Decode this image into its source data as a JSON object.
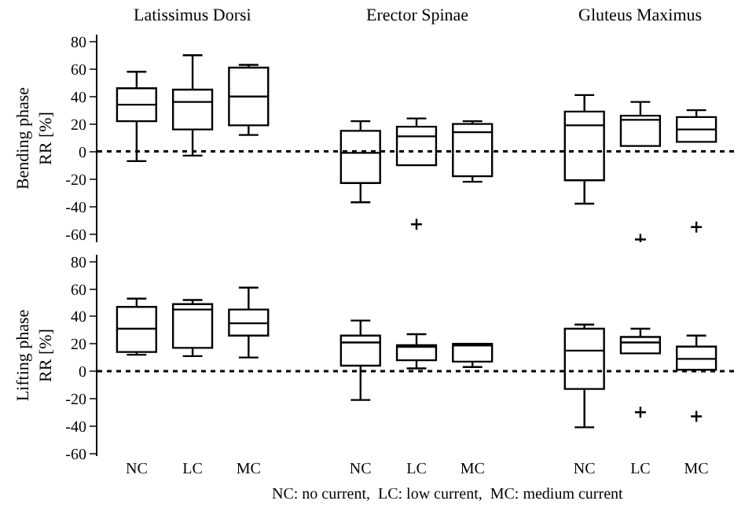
{
  "chart_data": [
    {
      "type": "box",
      "ylabel": "Bending phase\nRR [%]",
      "annotations": [
        "Latissimus Dorsi",
        "Erector Spinae",
        "Gluteus Maximus"
      ],
      "categories": [
        null,
        null,
        null,
        null,
        null,
        null,
        null,
        null,
        null,
        null,
        null
      ],
      "boxes": [
        {
          "low": -7,
          "q1": 22,
          "median": 34,
          "q3": 46,
          "high": 58
        },
        {
          "low": -3,
          "q1": 16,
          "median": 36,
          "q3": 45,
          "high": 70
        },
        {
          "low": 12,
          "q1": 19,
          "median": 40,
          "q3": 61,
          "high": 63
        },
        null,
        {
          "low": -37,
          "q1": -23,
          "median": -1,
          "q3": 15,
          "high": 22
        },
        {
          "low": -10,
          "q1": -10,
          "median": 11,
          "q3": 18,
          "high": 24,
          "outliers": [
            -53
          ]
        },
        {
          "low": -22,
          "q1": -18,
          "median": 14,
          "q3": 20,
          "high": 22
        },
        null,
        {
          "low": -38,
          "q1": -21,
          "median": 19,
          "q3": 29,
          "high": 41
        },
        {
          "low": 4,
          "q1": 4,
          "median": 23,
          "q3": 26,
          "high": 36,
          "outliers": [
            -64
          ]
        },
        {
          "low": 7,
          "q1": 7,
          "median": 16,
          "q3": 25,
          "high": 30,
          "outliers": [
            -55
          ]
        }
      ],
      "ylim": [
        -66,
        85
      ],
      "yticks": [
        -60,
        -40,
        -20,
        0,
        20,
        40,
        60,
        80
      ],
      "tick_labels": "y",
      "grid": false,
      "ref_lines": [
        {
          "axis": "y",
          "value": 0,
          "color": "#000000",
          "line_style": "dotted"
        }
      ]
    },
    {
      "type": "box",
      "ylabel": "Lifting phase\nRR [%]",
      "annotations": [
        "NC: no current,  LC: low current,  MC: medium current"
      ],
      "categories": [
        "NC",
        "LC",
        "MC",
        null,
        "NC",
        "LC",
        "MC",
        null,
        "NC",
        "LC",
        "MC"
      ],
      "boxes": [
        {
          "low": 12,
          "q1": 14,
          "median": 31,
          "q3": 47,
          "high": 53
        },
        {
          "low": 11,
          "q1": 17,
          "median": 45,
          "q3": 49,
          "high": 52
        },
        {
          "low": 10,
          "q1": 26,
          "median": 35,
          "q3": 45,
          "high": 61
        },
        null,
        {
          "low": -21,
          "q1": 4,
          "median": 21,
          "q3": 26,
          "high": 37
        },
        {
          "low": 2,
          "q1": 8,
          "median": 18,
          "q3": 19,
          "high": 27
        },
        {
          "low": 3,
          "q1": 7,
          "median": 19,
          "q3": 20,
          "high": 20
        },
        null,
        {
          "low": -41,
          "q1": -13,
          "median": 15,
          "q3": 31,
          "high": 34
        },
        {
          "low": 13,
          "q1": 13,
          "median": 21,
          "q3": 25,
          "high": 31,
          "outliers": [
            -30
          ]
        },
        {
          "low": 1,
          "q1": 1,
          "median": 9,
          "q3": 18,
          "high": 26,
          "outliers": [
            -33
          ]
        }
      ],
      "ylim": [
        -62,
        85
      ],
      "yticks": [
        -60,
        -40,
        -20,
        0,
        20,
        40,
        60,
        80
      ],
      "grid": false,
      "ref_lines": [
        {
          "axis": "y",
          "value": 0,
          "color": "#000000",
          "line_style": "dotted"
        }
      ]
    }
  ]
}
